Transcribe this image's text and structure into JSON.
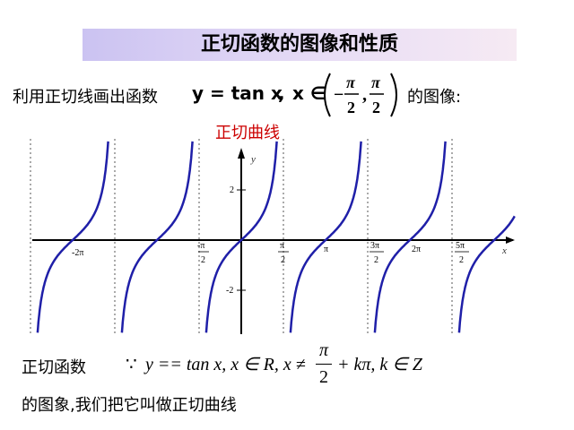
{
  "title": "正切函数的图像和性质",
  "intro": {
    "text_before": "利用正切线画出函数",
    "func": "y = tan x",
    "comma": ",",
    "domain_x": "x ∈",
    "neg": "−",
    "pi": "π",
    "two": "2",
    "sep": ",",
    "text_after": "的图像:"
  },
  "caption": "正切曲线",
  "chart_data": {
    "type": "line",
    "title": "",
    "xlabel": "x",
    "ylabel": "y",
    "function": "tan(x)",
    "asymptotes_x": [
      "-5π/2",
      "-3π/2",
      "-π/2",
      "π/2",
      "3π/2",
      "5π/2"
    ],
    "x_tick_labels": [
      "-2π",
      "-π/2",
      "π/2",
      "π",
      "3π/2",
      "2π",
      "5π/2"
    ],
    "y_tick_labels": [
      "2",
      "-2"
    ],
    "curve_color": "#1f1fa8",
    "grid": false
  },
  "ticks": {
    "neg2pi": "-2π",
    "negpi_over2": "-π",
    "pi_over2": "π",
    "pi": "π",
    "threepi_over2": "3π",
    "twopi": "2π",
    "fivepi_over2": "5π",
    "denom": "2",
    "y2": "2",
    "yneg2": "-2",
    "xlab": "x",
    "ylab": "y"
  },
  "bottom": {
    "label": "正切函数",
    "because": "∵",
    "formula_left": "y == tan x, x ∈ R, x ≠",
    "frac_num": "π",
    "frac_den": "2",
    "formula_right": "+ kπ, k ∈ Z",
    "line2": "的图象,我们把它叫做正切曲线"
  }
}
